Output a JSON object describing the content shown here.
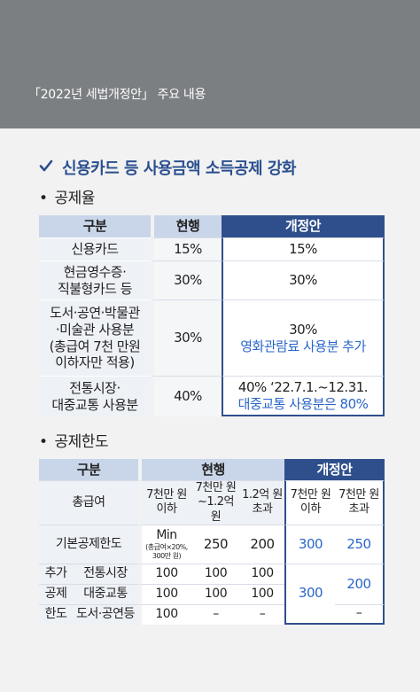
{
  "header": {
    "title": "「2022년 세법개정안」 주요 내용"
  },
  "section": {
    "title": "신용카드 등 사용금액 소득공제 강화",
    "check_color": "#2b4f8f"
  },
  "rate": {
    "subtitle": "공제율",
    "headers": [
      "구분",
      "현행",
      "개정안"
    ],
    "rows": [
      {
        "label": "신용카드",
        "current": "15%",
        "revised": "15%",
        "revised_note": ""
      },
      {
        "label": "현금영수증·\n직불형카드 등",
        "current": "30%",
        "revised": "30%",
        "revised_note": ""
      },
      {
        "label": "도서·공연·박물관\n·미술관 사용분\n(총급여 7천 만원\n이하자만 적용)",
        "current": "30%",
        "revised": "30%",
        "revised_note": "영화관람료 사용분 추가"
      },
      {
        "label": "전통시장·\n대중교통 사용분",
        "current": "40%",
        "revised": "40% ‘22.7.1.~12.31.",
        "revised_note": "대중교통 사용분은 80%"
      }
    ]
  },
  "limit": {
    "subtitle": "공제한도",
    "headers": {
      "category": "구분",
      "current": "현행",
      "revised": "개정안"
    },
    "salary_label": "총급여",
    "current_brackets": [
      "7천만 원\n이하",
      "7천만 원\n~1.2억 원",
      "1.2억 원\n초과"
    ],
    "revised_brackets": [
      "7천만 원\n이하",
      "7천만 원\n초과"
    ],
    "basic": {
      "label": "기본공제한도",
      "min_text": "Min",
      "min_note": "(총급여×20%,\n300만 원)",
      "v2": "250",
      "v3": "200",
      "r1": "300",
      "r2": "250"
    },
    "additional": {
      "label_lines": [
        "추가",
        "공제",
        "한도"
      ],
      "rows": [
        {
          "label": "전통시장",
          "v1": "100",
          "v2": "100",
          "v3": "100"
        },
        {
          "label": "대중교통",
          "v1": "100",
          "v2": "100",
          "v3": "100"
        },
        {
          "label": "도서·공연등",
          "v1": "100",
          "v2": "–",
          "v3": "–"
        }
      ],
      "revised_low": "300",
      "revised_high_top": "200",
      "revised_high_bottom": "–"
    }
  },
  "colors": {
    "header_bg": "#7b7f82",
    "accent": "#2f4f8c",
    "highlight": "#2a66c9"
  }
}
